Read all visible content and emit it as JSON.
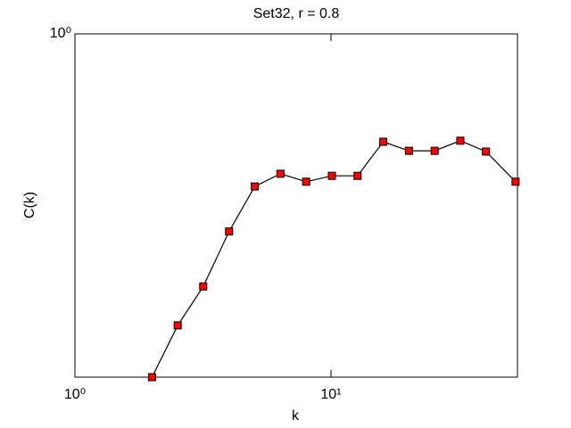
{
  "chart_data": {
    "type": "line",
    "title": "Set32, r = 0.8",
    "x_label": "k",
    "y_label": "C(k)",
    "log_x": true,
    "log_y": true,
    "x": [
      2,
      2.52,
      3.17,
      4,
      5.04,
      6.35,
      8,
      10.08,
      12.7,
      16,
      20.16,
      25.4,
      32,
      40.3,
      52.6
    ],
    "series": [
      {
        "name": "C(k)",
        "color": "#ff0000",
        "values": [
          0.2,
          0.255,
          0.306,
          0.396,
          0.489,
          0.519,
          0.5,
          0.514,
          0.514,
          0.603,
          0.578,
          0.578,
          0.606,
          0.576,
          0.5
        ]
      }
    ],
    "xlim": [
      1,
      53.5
    ],
    "ylim": [
      0.2,
      1
    ],
    "xticks": [
      {
        "value": 1,
        "label": "10⁰"
      },
      {
        "value": 10,
        "label": "10¹"
      }
    ],
    "yticks": [
      {
        "value": 1,
        "label": "10⁰"
      }
    ]
  }
}
